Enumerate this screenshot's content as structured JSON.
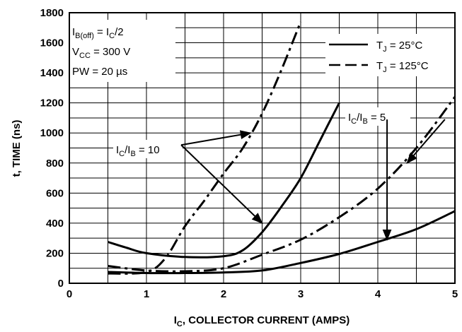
{
  "chart_data": {
    "type": "line",
    "xlabel": {
      "main": "I",
      "sub": "C",
      "rest": ", COLLECTOR CURRENT (AMPS)"
    },
    "ylabel": "t, TIME (ns)",
    "xlim": [
      0,
      5
    ],
    "ylim": [
      0,
      1800
    ],
    "xticks": [
      0,
      1,
      2,
      3,
      4,
      5
    ],
    "yticks": [
      0,
      200,
      400,
      600,
      800,
      1000,
      1200,
      1400,
      1600,
      1800
    ],
    "grid": true,
    "conditions": [
      {
        "main": "I",
        "sub": "B(off)",
        "rest": " = I",
        "sub2": "C",
        "rest2": "/2"
      },
      {
        "main": "V",
        "sub": "CC",
        "rest": " = 300 V",
        "sub2": "",
        "rest2": ""
      },
      {
        "main": "PW = 20 ",
        "sub": "",
        "rest": "µs",
        "sub2": "",
        "rest2": ""
      }
    ],
    "legend": [
      {
        "style": "solid",
        "main": "T",
        "sub": "J",
        "rest": " = 25°C"
      },
      {
        "style": "dashed",
        "main": "T",
        "sub": "J",
        "rest": " = 125°C"
      }
    ],
    "annotations": [
      {
        "main": "I",
        "sub": "C",
        "rest": "/I",
        "sub2": "B",
        "rest2": " = 10"
      },
      {
        "main": "I",
        "sub": "C",
        "rest": "/I",
        "sub2": "B",
        "rest2": " = 5"
      }
    ],
    "series": [
      {
        "style": "solid",
        "points": [
          [
            0.5,
            275
          ],
          [
            0.75,
            235
          ],
          [
            1.0,
            200
          ],
          [
            1.5,
            175
          ],
          [
            2.0,
            180
          ],
          [
            2.25,
            220
          ],
          [
            2.5,
            340
          ],
          [
            2.75,
            510
          ],
          [
            3.0,
            700
          ],
          [
            3.25,
            950
          ],
          [
            3.5,
            1200
          ]
        ]
      },
      {
        "style": "dashdot",
        "points": [
          [
            0.5,
            65
          ],
          [
            1.0,
            75
          ],
          [
            1.25,
            170
          ],
          [
            1.5,
            380
          ],
          [
            1.75,
            550
          ],
          [
            2.0,
            730
          ],
          [
            2.25,
            900
          ],
          [
            2.5,
            1130
          ],
          [
            2.75,
            1420
          ],
          [
            3.0,
            1740
          ]
        ]
      },
      {
        "style": "solid",
        "points": [
          [
            0.5,
            75
          ],
          [
            1.0,
            68
          ],
          [
            1.5,
            68
          ],
          [
            2.0,
            72
          ],
          [
            2.5,
            85
          ],
          [
            3.0,
            135
          ],
          [
            3.5,
            195
          ],
          [
            4.0,
            275
          ],
          [
            4.5,
            360
          ],
          [
            5.0,
            480
          ]
        ]
      },
      {
        "style": "dashdot",
        "points": [
          [
            0.5,
            115
          ],
          [
            1.0,
            85
          ],
          [
            1.5,
            80
          ],
          [
            2.0,
            100
          ],
          [
            2.5,
            190
          ],
          [
            3.0,
            290
          ],
          [
            3.5,
            440
          ],
          [
            4.0,
            630
          ],
          [
            4.5,
            900
          ],
          [
            5.0,
            1240
          ]
        ]
      }
    ]
  }
}
